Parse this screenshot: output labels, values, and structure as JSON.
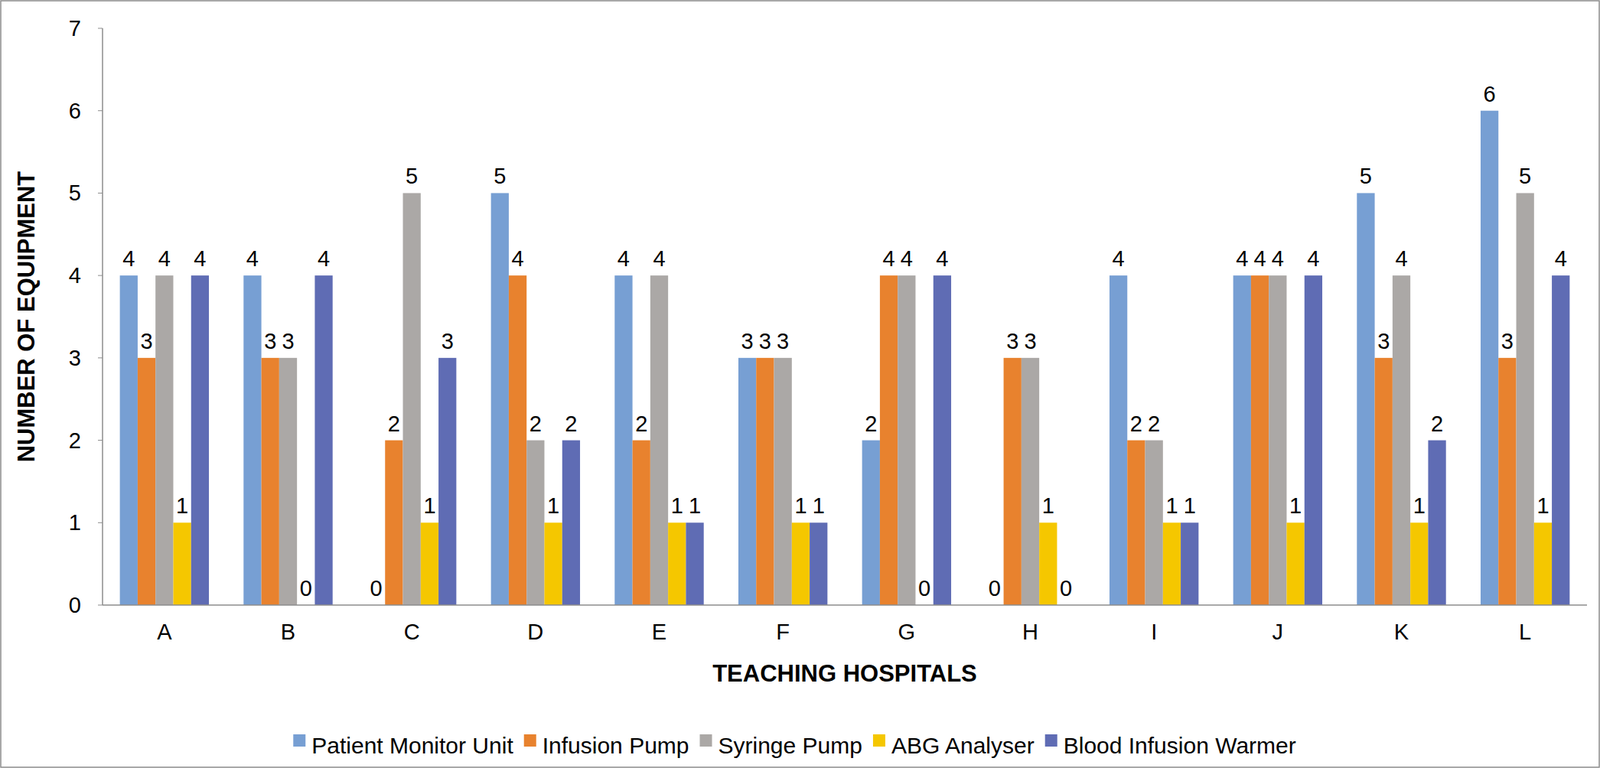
{
  "chart_data": {
    "type": "bar",
    "x_label": "TEACHING HOSPITALS",
    "y_label": "NUMBER OF EQUIPMENT",
    "categories": [
      "A",
      "B",
      "C",
      "D",
      "E",
      "F",
      "G",
      "H",
      "I",
      "J",
      "K",
      "L"
    ],
    "series": [
      {
        "name": "Patient Monitor Unit",
        "color": "#779fd3",
        "values": [
          4,
          4,
          0,
          5,
          4,
          3,
          2,
          0,
          4,
          4,
          5,
          6
        ]
      },
      {
        "name": "Infusion Pump",
        "color": "#e8822e",
        "values": [
          3,
          3,
          2,
          4,
          2,
          3,
          4,
          3,
          2,
          4,
          3,
          3
        ]
      },
      {
        "name": "Syringe Pump",
        "color": "#aba8a6",
        "values": [
          4,
          3,
          5,
          2,
          4,
          3,
          4,
          3,
          2,
          4,
          4,
          5
        ]
      },
      {
        "name": "ABG Analyser",
        "color": "#f5c700",
        "values": [
          1,
          0,
          1,
          1,
          1,
          1,
          0,
          1,
          1,
          1,
          1,
          1
        ]
      },
      {
        "name": "Blood Infusion Warmer",
        "color": "#5f6cb4",
        "values": [
          4,
          4,
          3,
          2,
          1,
          1,
          4,
          0,
          1,
          4,
          2,
          4
        ]
      }
    ],
    "ylim": [
      0,
      7
    ],
    "yticks": [
      0,
      1,
      2,
      3,
      4,
      5,
      6,
      7
    ],
    "grid": false,
    "data_labels": true,
    "legend": "bottom"
  }
}
